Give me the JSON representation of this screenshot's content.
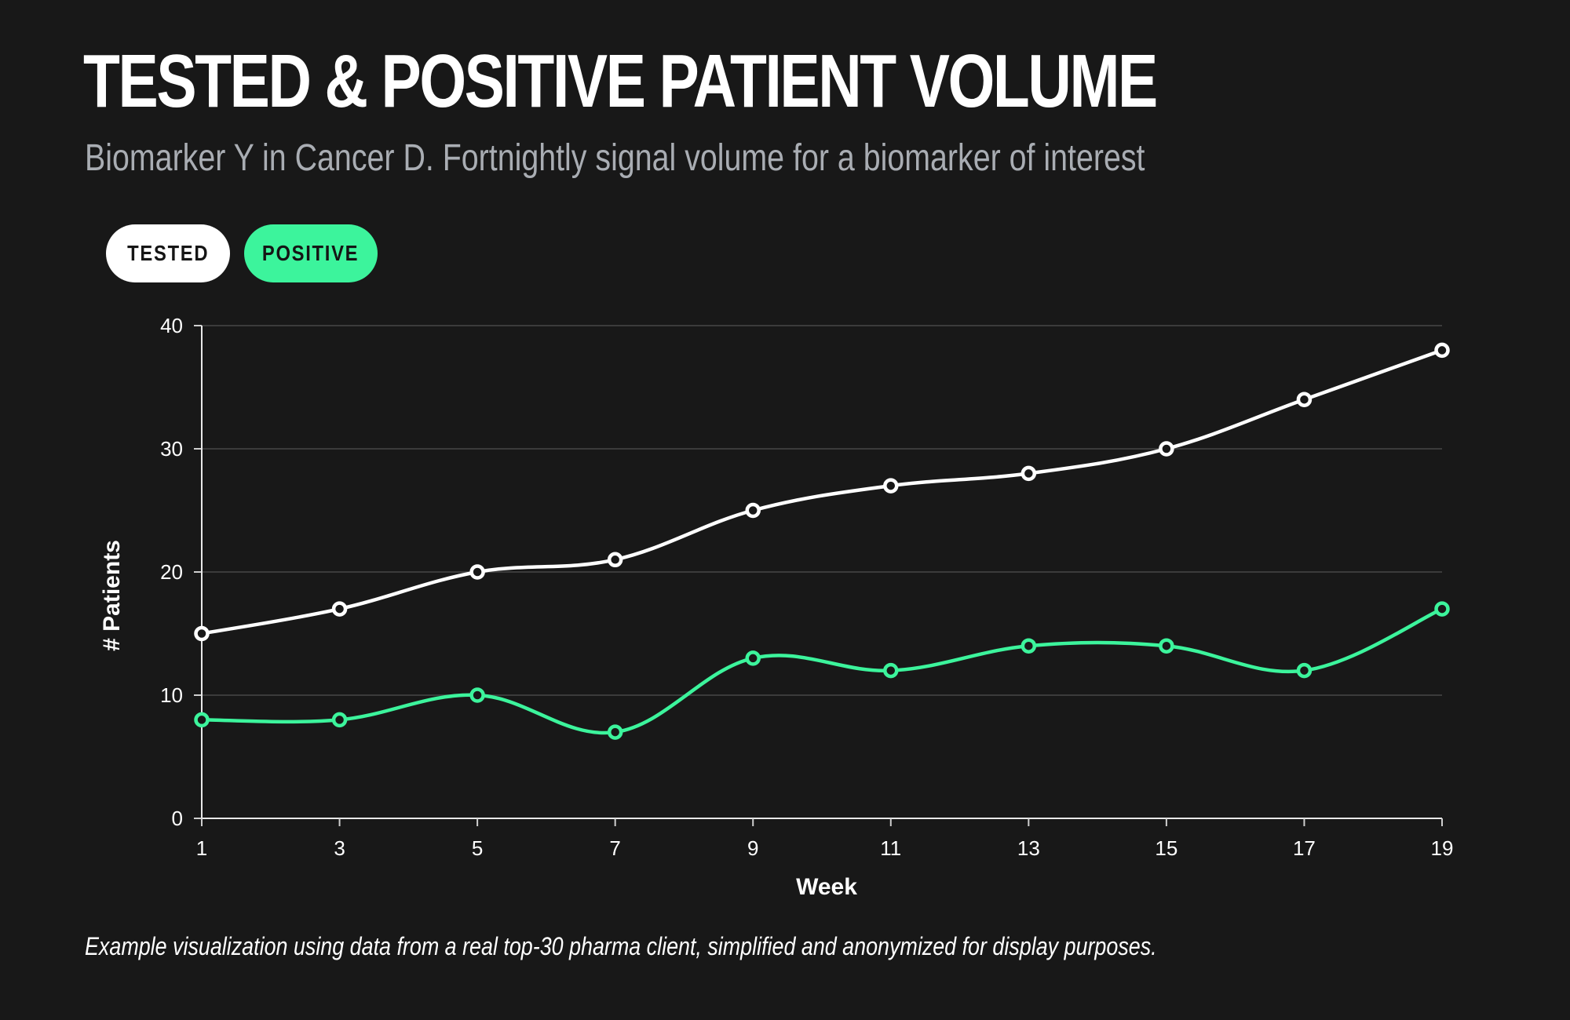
{
  "header": {
    "title": "TESTED & POSITIVE PATIENT VOLUME",
    "subtitle": "Biomarker Y in Cancer D. Fortnightly signal volume for a biomarker of interest"
  },
  "legend": {
    "items": [
      {
        "label": "TESTED",
        "color": "#ffffff"
      },
      {
        "label": "POSITIVE",
        "color": "#3cf49c"
      }
    ]
  },
  "chart_data": {
    "type": "line",
    "x": [
      1,
      3,
      5,
      7,
      9,
      11,
      13,
      15,
      17,
      19
    ],
    "series": [
      {
        "name": "TESTED",
        "color": "#ffffff",
        "values": [
          15,
          17,
          20,
          21,
          25,
          27,
          28,
          30,
          34,
          38
        ]
      },
      {
        "name": "POSITIVE",
        "color": "#3cf49c",
        "values": [
          8,
          8,
          10,
          7,
          13,
          12,
          14,
          14,
          12,
          17
        ]
      }
    ],
    "xlabel": "Week",
    "ylabel": "# Patients",
    "xticks": [
      "1",
      "3",
      "5",
      "7",
      "9",
      "11",
      "13",
      "15",
      "17",
      "19"
    ],
    "yticks": [
      "0",
      "10",
      "20",
      "30",
      "40"
    ],
    "xlim": [
      1,
      19
    ],
    "ylim": [
      0,
      40
    ],
    "grid": true,
    "legend_position": "top-left"
  },
  "footnote": "Example visualization using data from a real top-30 pharma client, simplified and anonymized for display purposes."
}
